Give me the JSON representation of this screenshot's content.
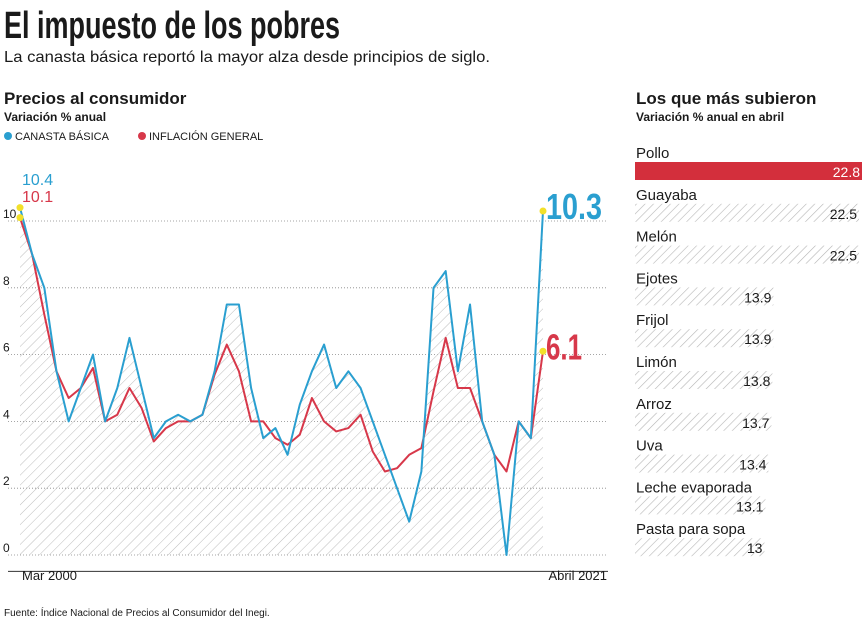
{
  "header": {
    "title": "El impuesto de los pobres",
    "subtitle": "La canasta básica reportó la mayor alza desde principios de siglo."
  },
  "source": "Fuente: Índice Nacional de Precios al Consumidor del Inegi.",
  "chart_data": [
    {
      "type": "line",
      "title": "Precios al consumidor",
      "subtitle": "Variación % anual",
      "categories": [
        "Mar 2000",
        null,
        null,
        null,
        null,
        null,
        null,
        null,
        null,
        null,
        null,
        null,
        null,
        null,
        null,
        null,
        null,
        null,
        null,
        null,
        null,
        null,
        null,
        null,
        null,
        null,
        null,
        null,
        null,
        null,
        null,
        null,
        null,
        null,
        null,
        null,
        null,
        null,
        null,
        null,
        null,
        null,
        null,
        "Abril 2021"
      ],
      "series": [
        {
          "name": "CANASTA BÁSICA",
          "color": "#2a9fd0",
          "values": [
            10.4,
            9.0,
            8.0,
            5.5,
            4.0,
            5.0,
            6.0,
            4.0,
            5.0,
            6.5,
            5.0,
            3.5,
            4.0,
            4.2,
            4.0,
            4.2,
            5.5,
            7.5,
            7.5,
            5.0,
            3.5,
            3.8,
            3.0,
            4.5,
            5.5,
            6.3,
            5.0,
            5.5,
            5.0,
            4.0,
            3.0,
            2.0,
            1.0,
            2.5,
            8.0,
            8.5,
            5.5,
            7.5,
            4.0,
            3.0,
            0.0,
            4.0,
            3.5,
            10.3
          ]
        },
        {
          "name": "INFLACIÓN GENERAL",
          "color": "#d7384a",
          "values": [
            10.1,
            9.0,
            7.2,
            5.5,
            4.7,
            5.0,
            5.6,
            4.0,
            4.2,
            5.0,
            4.4,
            3.4,
            3.8,
            4.0,
            4.0,
            4.2,
            5.4,
            6.3,
            5.5,
            4.0,
            4.0,
            3.5,
            3.3,
            3.6,
            4.7,
            4.0,
            3.7,
            3.8,
            4.2,
            3.1,
            2.5,
            2.6,
            3.0,
            3.2,
            4.9,
            6.5,
            5.0,
            5.0,
            4.0,
            3.0,
            2.5,
            4.0,
            3.5,
            6.1
          ]
        }
      ],
      "ylim": [
        -0.4,
        11.4
      ],
      "yticks": [
        0,
        2,
        4,
        6,
        8,
        10
      ],
      "grid": true,
      "area_hatch": true,
      "marker_color": "#f2e02a"
    },
    {
      "type": "hbar",
      "title": "Los que más subieron",
      "subtitle": "Variación % anual en abril",
      "categories": [
        "Pollo",
        "Guayaba",
        "Melón",
        "Ejotes",
        "Frijol",
        "Limón",
        "Arroz",
        "Uva",
        "Leche evaporada",
        "Pasta para sopa"
      ],
      "values": [
        22.8,
        22.5,
        22.5,
        13.9,
        13.9,
        13.8,
        13.7,
        13.4,
        13.1,
        13.0
      ],
      "colors": [
        "#d32f3c",
        "#b5b5b5",
        "#b5b5b5",
        "#b5b5b5",
        "#b5b5b5",
        "#b5b5b5",
        "#b5b5b5",
        "#b5b5b5",
        "#b5b5b5",
        "#b5b5b5"
      ],
      "styles": [
        "solid",
        "hatch",
        "hatch",
        "hatch",
        "hatch",
        "hatch",
        "hatch",
        "hatch",
        "hatch",
        "hatch"
      ],
      "xlim": [
        0,
        23
      ]
    }
  ]
}
